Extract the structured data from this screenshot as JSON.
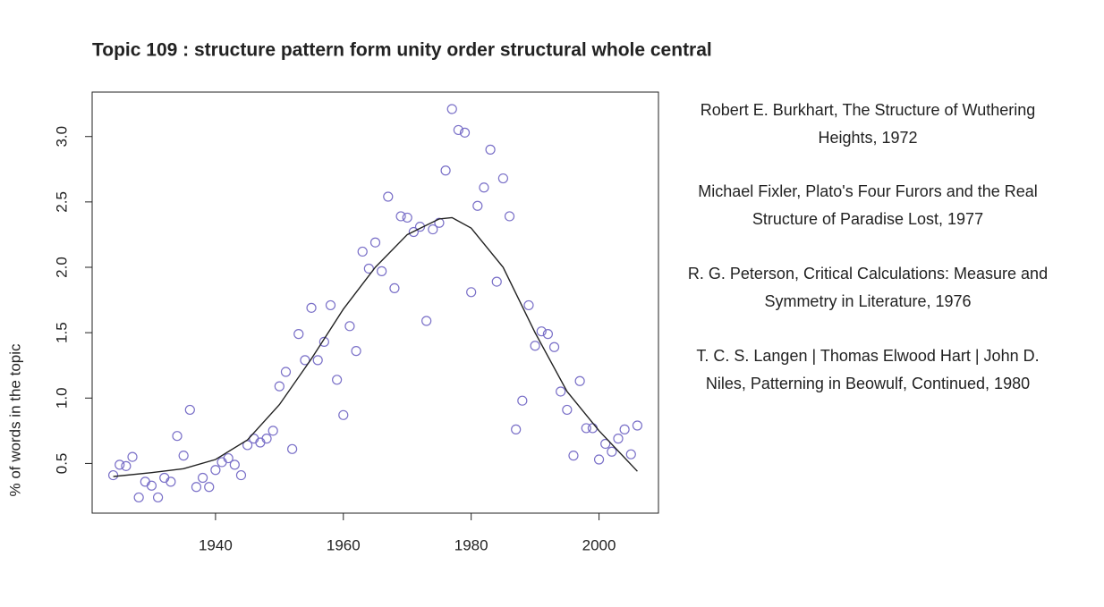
{
  "chart_data": {
    "type": "scatter",
    "title": "Topic 109 : structure pattern form unity order structural whole central",
    "y_label": "% of words in the topic",
    "xlim": [
      1920.7,
      2009.3
    ],
    "ylim": [
      0.12,
      3.34
    ],
    "xticks": [
      1940,
      1960,
      1980,
      2000
    ],
    "yticks": [
      0.5,
      {
        "value": 1.0,
        "label": "1.0"
      },
      1.5,
      {
        "value": 2.0,
        "label": "2.0"
      },
      2.5,
      {
        "value": 3.0,
        "label": "3.0"
      }
    ],
    "series": [
      {
        "type": "scatter",
        "color": "#7a70c8",
        "x": [
          1924,
          1925,
          1926,
          1927,
          1928,
          1929,
          1930,
          1931,
          1932,
          1933,
          1934,
          1935,
          1936,
          1937,
          1938,
          1939,
          1940,
          1941,
          1942,
          1943,
          1944,
          1945,
          1946,
          1947,
          1948,
          1949,
          1950,
          1951,
          1952,
          1953,
          1954,
          1955,
          1956,
          1957,
          1958,
          1959,
          1960,
          1961,
          1962,
          1963,
          1964,
          1965,
          1966,
          1967,
          1968,
          1969,
          1970,
          1971,
          1972,
          1973,
          1974,
          1975,
          1976,
          1977,
          1978,
          1979,
          1980,
          1981,
          1982,
          1983,
          1984,
          1985,
          1986,
          1987,
          1988,
          1989,
          1990,
          1991,
          1992,
          1993,
          1994,
          1995,
          1996,
          1997,
          1998,
          1999,
          2000,
          2001,
          2002,
          2003,
          2004,
          2005,
          2006
        ],
        "values": [
          0.41,
          0.49,
          0.48,
          0.55,
          0.24,
          0.36,
          0.33,
          0.24,
          0.39,
          0.36,
          0.71,
          0.56,
          0.91,
          0.32,
          0.39,
          0.32,
          0.45,
          0.51,
          0.54,
          0.49,
          0.41,
          0.64,
          0.69,
          0.66,
          0.69,
          0.75,
          1.09,
          1.2,
          0.61,
          1.49,
          1.29,
          1.69,
          1.29,
          1.43,
          1.71,
          1.14,
          0.87,
          1.55,
          1.36,
          2.12,
          1.99,
          2.19,
          1.97,
          2.54,
          1.84,
          2.39,
          2.38,
          2.27,
          2.31,
          1.59,
          2.29,
          2.34,
          2.74,
          3.21,
          3.05,
          3.03,
          1.81,
          2.47,
          2.61,
          2.9,
          1.89,
          2.68,
          2.39,
          0.76,
          0.98,
          1.71,
          1.4,
          1.51,
          1.49,
          1.39,
          1.05,
          0.91,
          0.56,
          1.13,
          0.77,
          0.77,
          0.53,
          0.65,
          0.59,
          0.69,
          0.76,
          0.57,
          0.79
        ]
      },
      {
        "type": "line",
        "color": "#222222",
        "x": [
          1924,
          1930,
          1935,
          1940,
          1945,
          1950,
          1955,
          1960,
          1965,
          1970,
          1975,
          1977,
          1980,
          1985,
          1990,
          1995,
          2000,
          2006
        ],
        "values": [
          0.4,
          0.43,
          0.46,
          0.53,
          0.68,
          0.95,
          1.3,
          1.68,
          2.0,
          2.25,
          2.37,
          2.38,
          2.3,
          2.0,
          1.5,
          1.05,
          0.75,
          0.44
        ]
      }
    ],
    "annotations": [
      "Robert E. Burkhart, The Structure of Wuthering Heights, 1972",
      "Michael Fixler, Plato's Four Furors and the Real Structure of Paradise Lost, 1977",
      "R. G. Peterson, Critical Calculations: Measure and Symmetry in Literature, 1976",
      "T. C. S. Langen | Thomas Elwood Hart | John D. Niles, Patterning in Beowulf, Continued, 1980"
    ]
  }
}
